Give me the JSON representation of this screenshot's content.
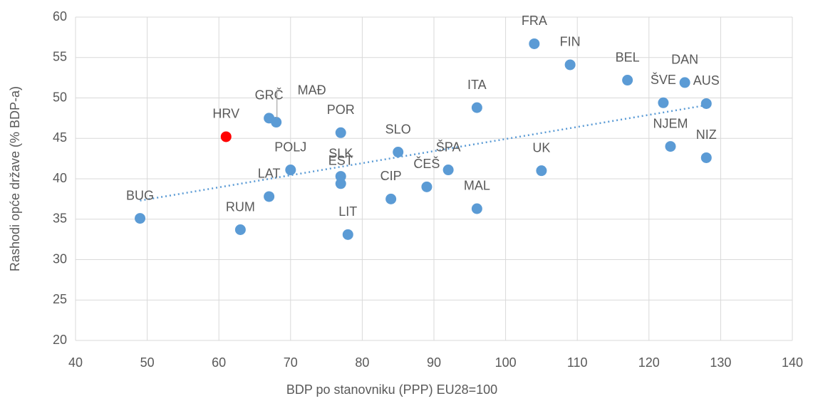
{
  "chart_data": {
    "type": "scatter",
    "xlabel": "BDP po stanovniku (PPP) EU28=100",
    "ylabel": "Rashodi opće države (% BDP-a)",
    "labels": [
      "BUG",
      "RUM",
      "HRV",
      "GRČ",
      "MAĐ",
      "LAT",
      "POLJ",
      "POR",
      "SLK",
      "EST",
      "LIT",
      "CIP",
      "SLO",
      "ČEŠ",
      "ŠPA",
      "MAL",
      "ITA",
      "UK",
      "FRA",
      "FIN",
      "BEL",
      "ŠVE",
      "DAN",
      "AUS",
      "NJEM",
      "NIZ"
    ],
    "x": [
      49,
      63,
      61,
      67,
      68,
      67,
      70,
      77,
      77,
      77,
      78,
      84,
      85,
      89,
      92,
      96,
      96,
      105,
      104,
      109,
      117,
      122,
      125,
      128,
      123,
      128
    ],
    "values": [
      35.1,
      33.7,
      45.2,
      47.5,
      47.0,
      37.8,
      41.1,
      45.7,
      40.3,
      39.4,
      33.1,
      37.5,
      43.3,
      39.0,
      41.1,
      36.3,
      48.8,
      41.0,
      56.7,
      54.1,
      52.2,
      49.4,
      51.9,
      49.3,
      44.0,
      42.6
    ],
    "colors": [
      "#5b9bd5",
      "#5b9bd5",
      "#ff0000",
      "#5b9bd5",
      "#5b9bd5",
      "#5b9bd5",
      "#5b9bd5",
      "#5b9bd5",
      "#5b9bd5",
      "#5b9bd5",
      "#5b9bd5",
      "#5b9bd5",
      "#5b9bd5",
      "#5b9bd5",
      "#5b9bd5",
      "#5b9bd5",
      "#5b9bd5",
      "#5b9bd5",
      "#5b9bd5",
      "#5b9bd5",
      "#5b9bd5",
      "#5b9bd5",
      "#5b9bd5",
      "#5b9bd5",
      "#5b9bd5",
      "#5b9bd5"
    ],
    "trend": {
      "x": [
        49,
        128
      ],
      "values": [
        37.3,
        49.1
      ],
      "color": "#5b9bd5"
    },
    "xlim": [
      40,
      140
    ],
    "xticks": [
      40,
      50,
      60,
      70,
      80,
      90,
      100,
      110,
      120,
      130,
      140
    ],
    "ylim": [
      20,
      60
    ],
    "yticks": [
      20,
      25,
      30,
      35,
      40,
      45,
      50,
      55,
      60
    ],
    "grid": true
  }
}
